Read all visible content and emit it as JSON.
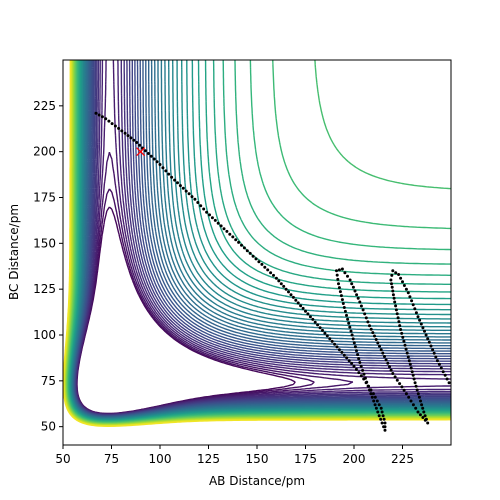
{
  "chart_data": {
    "type": "contour",
    "title": "",
    "xlabel": "AB Distance/pm",
    "ylabel": "BC Distance/pm",
    "xlim": [
      50,
      250
    ],
    "ylim": [
      40,
      250
    ],
    "xticks": [
      50,
      75,
      100,
      125,
      150,
      175,
      200,
      225
    ],
    "yticks": [
      50,
      75,
      100,
      125,
      150,
      175,
      200,
      225
    ],
    "xtick_labels": [
      "50",
      "75",
      "100",
      "125",
      "150",
      "175",
      "200",
      "225"
    ],
    "ytick_labels": [
      "50",
      "75",
      "100",
      "125",
      "150",
      "175",
      "200",
      "225"
    ],
    "colormap": "viridis",
    "contour_levels": 50,
    "surface": {
      "D": 1.0,
      "a": 0.04,
      "r0": 74,
      "well_min": 40,
      "barrier": 0.4
    },
    "start_marker": {
      "x": 90,
      "y": 200,
      "color": "#ff0000",
      "symbol": "x"
    },
    "trajectory_color": "#000000",
    "trajectory": [
      [
        67,
        221
      ],
      [
        72,
        218
      ],
      [
        77,
        214
      ],
      [
        82,
        210
      ],
      [
        88,
        205
      ],
      [
        94,
        199
      ],
      [
        100,
        193
      ],
      [
        106,
        186
      ],
      [
        112,
        180
      ],
      [
        118,
        174
      ],
      [
        124,
        167
      ],
      [
        130,
        161
      ],
      [
        136,
        155
      ],
      [
        142,
        149
      ],
      [
        148,
        143
      ],
      [
        154,
        137
      ],
      [
        160,
        131
      ],
      [
        165,
        125
      ],
      [
        170,
        119
      ],
      [
        175,
        113
      ],
      [
        180,
        107
      ],
      [
        185,
        101
      ],
      [
        190,
        95
      ],
      [
        195,
        89
      ],
      [
        200,
        83
      ],
      [
        205,
        76
      ],
      [
        210,
        68
      ],
      [
        214,
        60
      ],
      [
        216,
        52
      ],
      [
        216,
        48
      ],
      [
        213,
        56
      ],
      [
        208,
        70
      ],
      [
        203,
        85
      ],
      [
        199,
        100
      ],
      [
        195,
        115
      ],
      [
        192,
        128
      ],
      [
        191,
        135
      ],
      [
        194,
        136
      ],
      [
        198,
        130
      ],
      [
        203,
        118
      ],
      [
        208,
        105
      ],
      [
        214,
        92
      ],
      [
        220,
        79
      ],
      [
        227,
        68
      ],
      [
        233,
        58
      ],
      [
        238,
        52
      ],
      [
        236,
        58
      ],
      [
        232,
        72
      ],
      [
        228,
        88
      ],
      [
        224,
        103
      ],
      [
        221,
        118
      ],
      [
        219,
        130
      ],
      [
        220,
        135
      ],
      [
        223,
        133
      ],
      [
        228,
        123
      ],
      [
        233,
        110
      ],
      [
        238,
        98
      ],
      [
        243,
        86
      ],
      [
        248,
        76
      ],
      [
        250,
        72
      ]
    ]
  }
}
